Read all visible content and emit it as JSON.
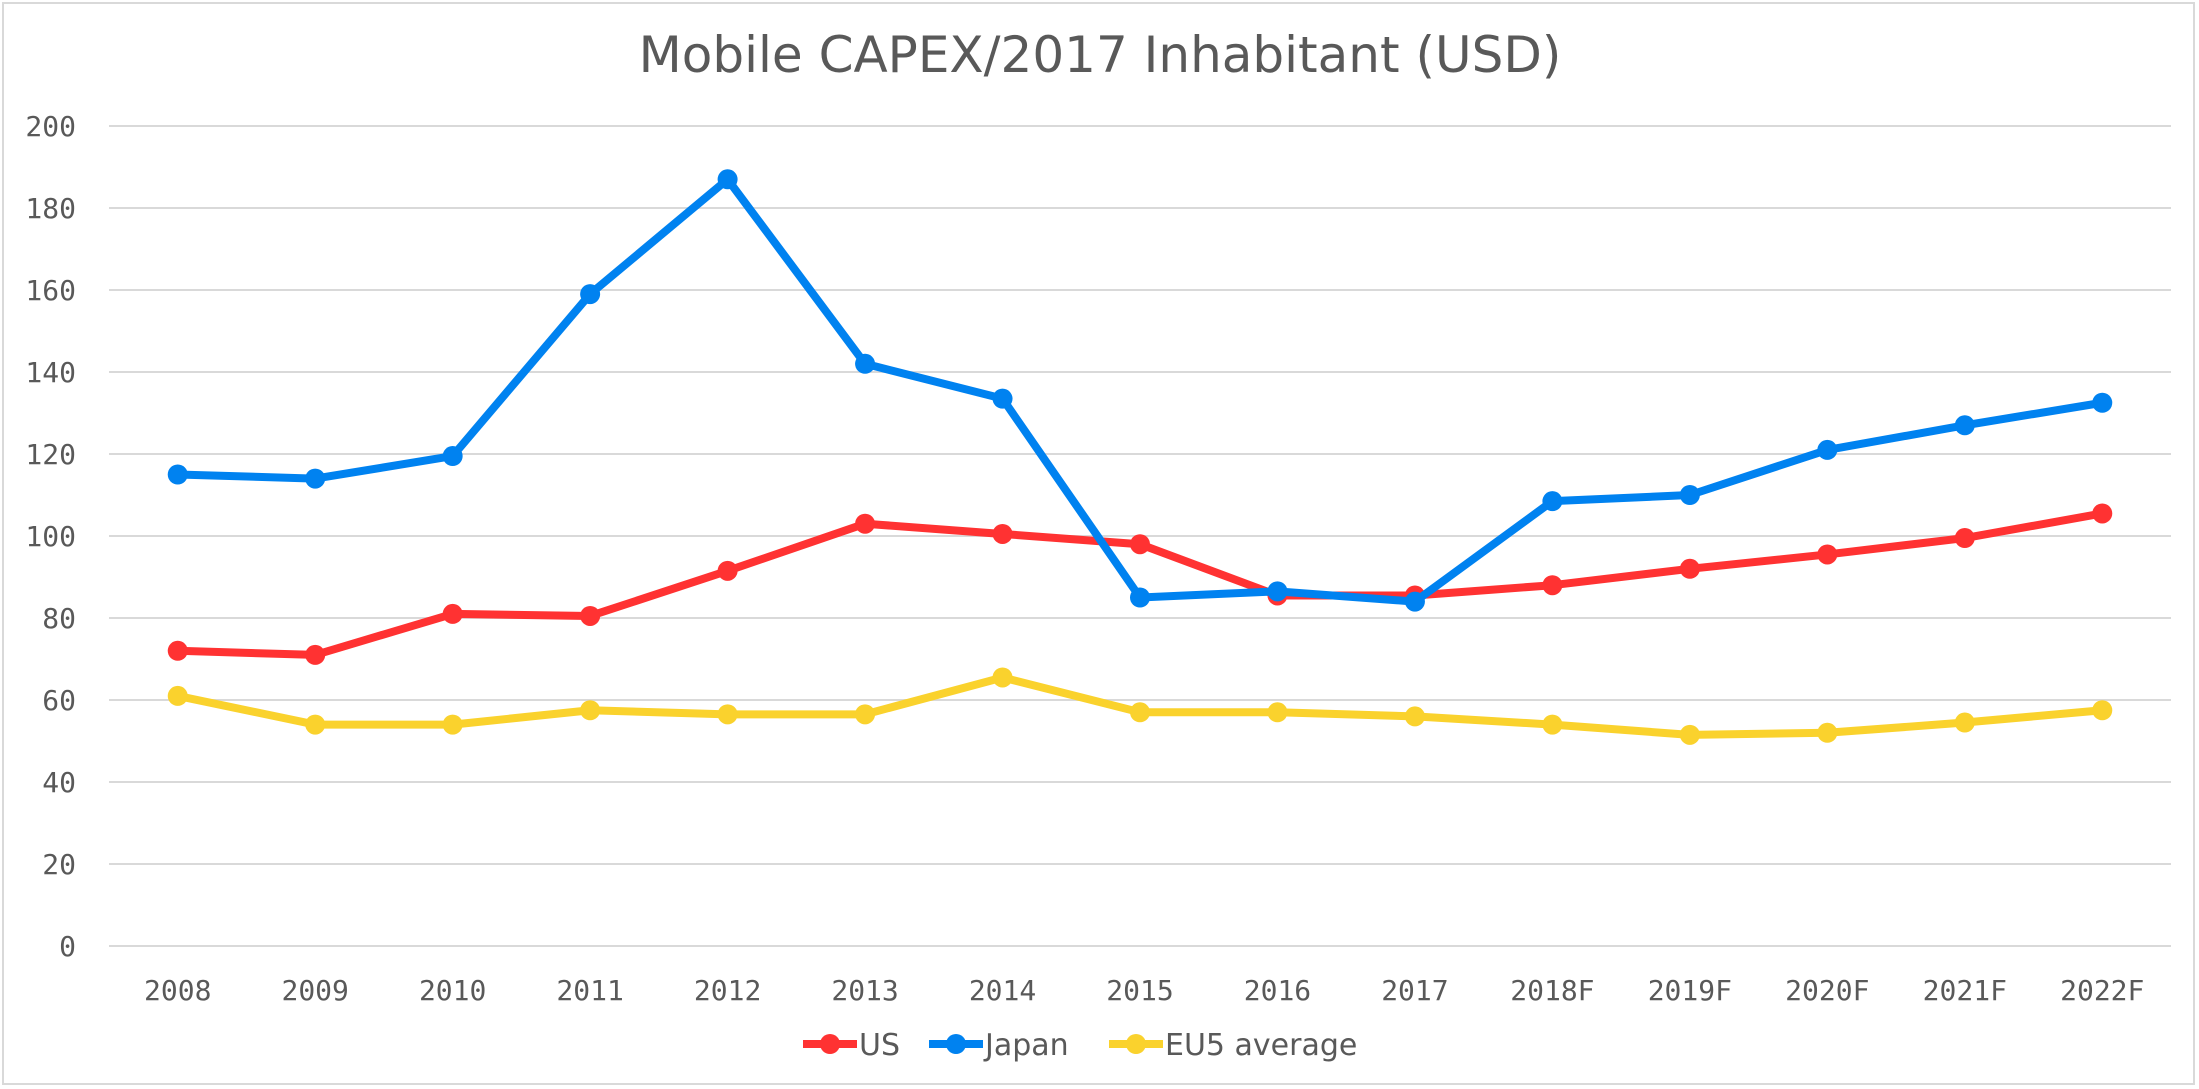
{
  "chart_data": {
    "type": "line",
    "title": "Mobile CAPEX/2017 Inhabitant (USD)",
    "xlabel": "",
    "ylabel": "",
    "ylim": [
      0,
      200
    ],
    "yticks": [
      0,
      20,
      40,
      60,
      80,
      100,
      120,
      140,
      160,
      180,
      200
    ],
    "grid": true,
    "legend_position": "bottom",
    "categories": [
      "2008",
      "2009",
      "2010",
      "2011",
      "2012",
      "2013",
      "2014",
      "2015",
      "2016",
      "2017",
      "2018F",
      "2019F",
      "2020F",
      "2021F",
      "2022F"
    ],
    "series": [
      {
        "name": "US",
        "color": "#FF3232",
        "values": [
          72,
          71,
          81,
          80.5,
          91.5,
          103,
          100.5,
          98,
          85.5,
          85.5,
          88,
          92,
          95.5,
          99.5,
          105.5
        ]
      },
      {
        "name": "Japan",
        "color": "#0082F0",
        "values": [
          115,
          114,
          119.5,
          159,
          187,
          142,
          133.5,
          85,
          86.5,
          84,
          108.5,
          110,
          121,
          127,
          132.5
        ]
      },
      {
        "name": "EU5 average",
        "color": "#FAD22D",
        "values": [
          61,
          54,
          54,
          57.5,
          56.5,
          56.5,
          65.5,
          57,
          57,
          56,
          54,
          51.5,
          52,
          54.5,
          57.5
        ]
      }
    ]
  }
}
